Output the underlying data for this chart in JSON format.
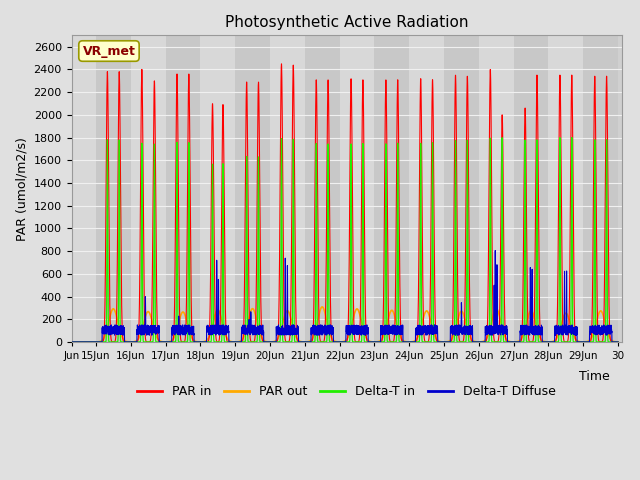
{
  "title": "Photosynthetic Active Radiation",
  "ylabel": "PAR (umol/m2/s)",
  "xlabel": "Time",
  "ylim": [
    0,
    2700
  ],
  "xlim_start": 14.3,
  "xlim_end": 30.1,
  "fig_bg": "#e0e0e0",
  "plot_bg": "#d0d0d0",
  "grid_color": "#f0f0f0",
  "annotation_text": "VR_met",
  "annotation_bg": "#ffffcc",
  "annotation_border": "#999900",
  "colors": {
    "PAR_in": "#ff0000",
    "PAR_out": "#ffaa00",
    "Delta_T_in": "#22ee00",
    "Delta_T_diffuse": "#0000cc"
  },
  "legend_labels": [
    "PAR in",
    "PAR out",
    "Delta-T in",
    "Delta-T Diffuse"
  ],
  "yticks": [
    0,
    200,
    400,
    600,
    800,
    1000,
    1200,
    1400,
    1600,
    1800,
    2000,
    2200,
    2400,
    2600
  ]
}
